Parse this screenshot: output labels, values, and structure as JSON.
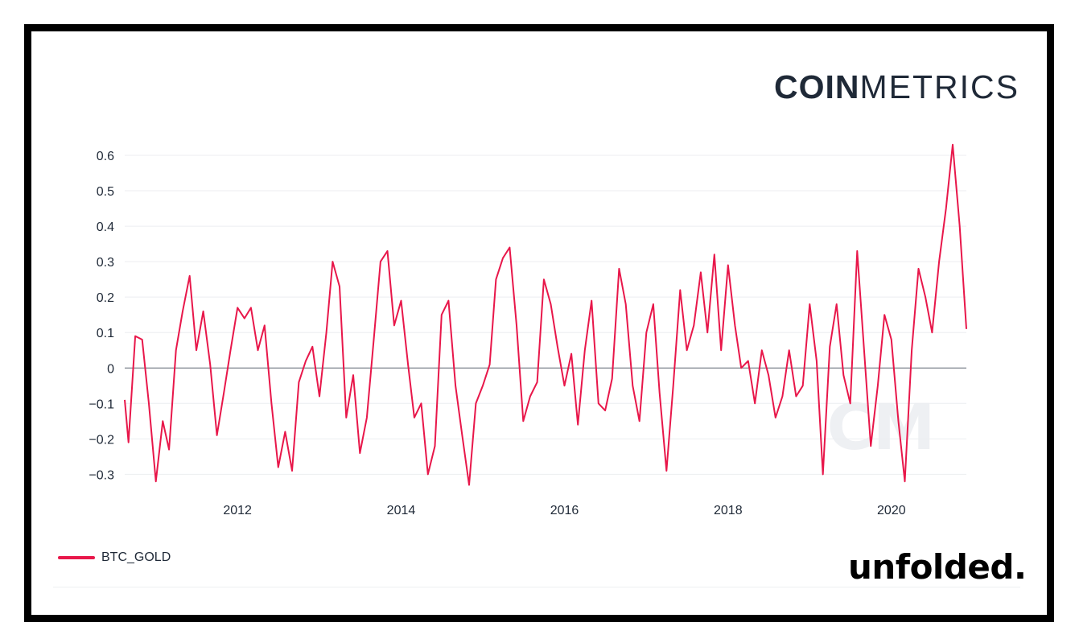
{
  "brand": {
    "coin": "COIN",
    "metrics": "METRICS",
    "unfolded": "unfolded.",
    "watermark": "CM"
  },
  "chart_data": {
    "type": "line",
    "title": "",
    "xlabel": "",
    "ylabel": "",
    "grid": true,
    "legend_position": "bottom-left",
    "xlim": [
      "2010-08-15",
      "2020-12-01"
    ],
    "ylim": [
      -0.34,
      0.65
    ],
    "x_ticks": [
      "2012",
      "2014",
      "2016",
      "2018",
      "2020"
    ],
    "y_ticks": [
      -0.3,
      -0.2,
      -0.1,
      0,
      0.1,
      0.2,
      0.3,
      0.4,
      0.5,
      0.6
    ],
    "y_tick_labels": [
      "−0.3",
      "−0.2",
      "−0.1",
      "0",
      "0.1",
      "0.2",
      "0.3",
      "0.4",
      "0.5",
      "0.6"
    ],
    "series": [
      {
        "name": "BTC_GOLD",
        "color": "#e8174a",
        "points": [
          [
            "2010-08-15",
            -0.09
          ],
          [
            "2010-09-01",
            -0.21
          ],
          [
            "2010-10-01",
            0.09
          ],
          [
            "2010-11-01",
            0.08
          ],
          [
            "2010-12-01",
            -0.1
          ],
          [
            "2011-01-01",
            -0.32
          ],
          [
            "2011-02-01",
            -0.15
          ],
          [
            "2011-03-01",
            -0.23
          ],
          [
            "2011-04-01",
            0.05
          ],
          [
            "2011-05-01",
            0.16
          ],
          [
            "2011-06-01",
            0.26
          ],
          [
            "2011-07-01",
            0.05
          ],
          [
            "2011-08-01",
            0.16
          ],
          [
            "2011-09-01",
            0.01
          ],
          [
            "2011-10-01",
            -0.19
          ],
          [
            "2011-11-01",
            -0.07
          ],
          [
            "2011-12-01",
            0.05
          ],
          [
            "2012-01-01",
            0.17
          ],
          [
            "2012-02-01",
            0.14
          ],
          [
            "2012-03-01",
            0.17
          ],
          [
            "2012-04-01",
            0.05
          ],
          [
            "2012-05-01",
            0.12
          ],
          [
            "2012-06-01",
            -0.1
          ],
          [
            "2012-07-01",
            -0.28
          ],
          [
            "2012-08-01",
            -0.18
          ],
          [
            "2012-09-01",
            -0.29
          ],
          [
            "2012-10-01",
            -0.04
          ],
          [
            "2012-11-01",
            0.02
          ],
          [
            "2012-12-01",
            0.06
          ],
          [
            "2013-01-01",
            -0.08
          ],
          [
            "2013-02-01",
            0.1
          ],
          [
            "2013-03-01",
            0.3
          ],
          [
            "2013-04-01",
            0.23
          ],
          [
            "2013-05-01",
            -0.14
          ],
          [
            "2013-06-01",
            -0.02
          ],
          [
            "2013-07-01",
            -0.24
          ],
          [
            "2013-08-01",
            -0.14
          ],
          [
            "2013-09-01",
            0.08
          ],
          [
            "2013-10-01",
            0.3
          ],
          [
            "2013-11-01",
            0.33
          ],
          [
            "2013-12-01",
            0.12
          ],
          [
            "2014-01-01",
            0.19
          ],
          [
            "2014-02-01",
            0.01
          ],
          [
            "2014-03-01",
            -0.14
          ],
          [
            "2014-04-01",
            -0.1
          ],
          [
            "2014-05-01",
            -0.3
          ],
          [
            "2014-06-01",
            -0.22
          ],
          [
            "2014-07-01",
            0.15
          ],
          [
            "2014-08-01",
            0.19
          ],
          [
            "2014-09-01",
            -0.05
          ],
          [
            "2014-10-01",
            -0.19
          ],
          [
            "2014-11-01",
            -0.33
          ],
          [
            "2014-12-01",
            -0.1
          ],
          [
            "2015-01-01",
            -0.05
          ],
          [
            "2015-02-01",
            0.01
          ],
          [
            "2015-03-01",
            0.25
          ],
          [
            "2015-04-01",
            0.31
          ],
          [
            "2015-05-01",
            0.34
          ],
          [
            "2015-06-01",
            0.12
          ],
          [
            "2015-07-01",
            -0.15
          ],
          [
            "2015-08-01",
            -0.08
          ],
          [
            "2015-09-01",
            -0.04
          ],
          [
            "2015-10-01",
            0.25
          ],
          [
            "2015-11-01",
            0.18
          ],
          [
            "2015-12-01",
            0.06
          ],
          [
            "2016-01-01",
            -0.05
          ],
          [
            "2016-02-01",
            0.04
          ],
          [
            "2016-03-01",
            -0.16
          ],
          [
            "2016-04-01",
            0.05
          ],
          [
            "2016-05-01",
            0.19
          ],
          [
            "2016-06-01",
            -0.1
          ],
          [
            "2016-07-01",
            -0.12
          ],
          [
            "2016-08-01",
            -0.03
          ],
          [
            "2016-09-01",
            0.28
          ],
          [
            "2016-10-01",
            0.18
          ],
          [
            "2016-11-01",
            -0.05
          ],
          [
            "2016-12-01",
            -0.15
          ],
          [
            "2017-01-01",
            0.1
          ],
          [
            "2017-02-01",
            0.18
          ],
          [
            "2017-03-01",
            -0.07
          ],
          [
            "2017-04-01",
            -0.29
          ],
          [
            "2017-05-01",
            -0.05
          ],
          [
            "2017-06-01",
            0.22
          ],
          [
            "2017-07-01",
            0.05
          ],
          [
            "2017-08-01",
            0.12
          ],
          [
            "2017-09-01",
            0.27
          ],
          [
            "2017-10-01",
            0.1
          ],
          [
            "2017-11-01",
            0.32
          ],
          [
            "2017-12-01",
            0.05
          ],
          [
            "2018-01-01",
            0.29
          ],
          [
            "2018-02-01",
            0.12
          ],
          [
            "2018-03-01",
            0.0
          ],
          [
            "2018-04-01",
            0.02
          ],
          [
            "2018-05-01",
            -0.1
          ],
          [
            "2018-06-01",
            0.05
          ],
          [
            "2018-07-01",
            -0.02
          ],
          [
            "2018-08-01",
            -0.14
          ],
          [
            "2018-09-01",
            -0.08
          ],
          [
            "2018-10-01",
            0.05
          ],
          [
            "2018-11-01",
            -0.08
          ],
          [
            "2018-12-01",
            -0.05
          ],
          [
            "2019-01-01",
            0.18
          ],
          [
            "2019-02-01",
            0.02
          ],
          [
            "2019-03-01",
            -0.3
          ],
          [
            "2019-04-01",
            0.06
          ],
          [
            "2019-05-01",
            0.18
          ],
          [
            "2019-06-01",
            -0.02
          ],
          [
            "2019-07-01",
            -0.1
          ],
          [
            "2019-08-01",
            0.33
          ],
          [
            "2019-09-01",
            0.05
          ],
          [
            "2019-10-01",
            -0.22
          ],
          [
            "2019-11-01",
            -0.05
          ],
          [
            "2019-12-01",
            0.15
          ],
          [
            "2020-01-01",
            0.08
          ],
          [
            "2020-02-01",
            -0.15
          ],
          [
            "2020-03-01",
            -0.32
          ],
          [
            "2020-04-01",
            0.05
          ],
          [
            "2020-05-01",
            0.28
          ],
          [
            "2020-06-01",
            0.2
          ],
          [
            "2020-07-01",
            0.1
          ],
          [
            "2020-08-01",
            0.3
          ],
          [
            "2020-09-01",
            0.45
          ],
          [
            "2020-10-01",
            0.63
          ],
          [
            "2020-11-01",
            0.4
          ],
          [
            "2020-12-01",
            0.11
          ]
        ]
      }
    ]
  }
}
